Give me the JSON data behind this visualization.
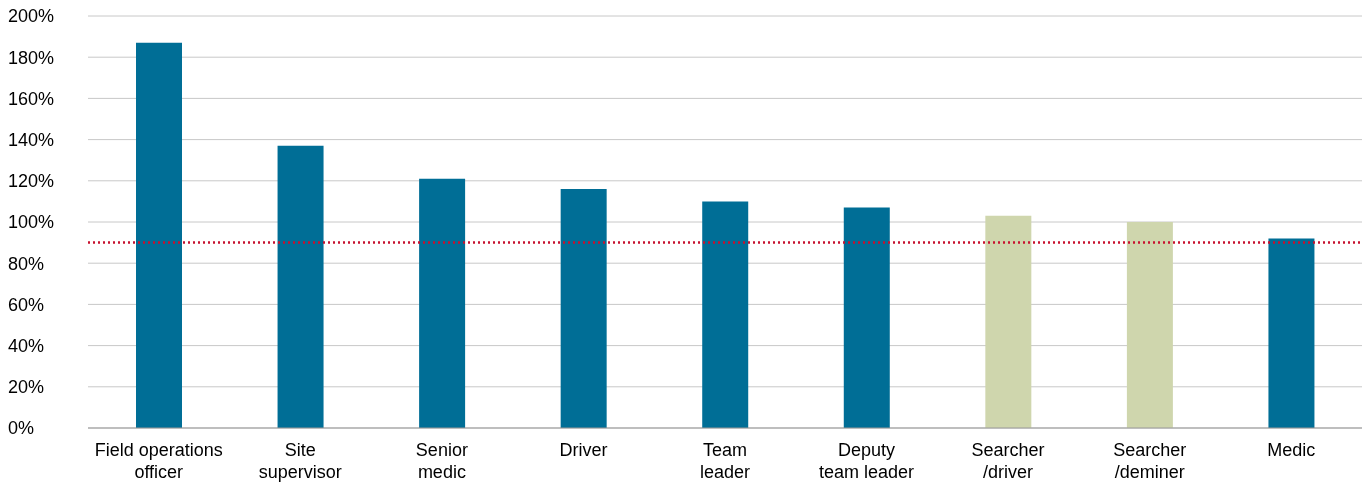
{
  "chart_data": {
    "type": "bar",
    "categories": [
      "Field operations\nofficer",
      "Site\nsupervisor",
      "Senior\nmedic",
      "Driver",
      "Team\nleader",
      "Deputy\nteam leader",
      "Searcher\n/driver",
      "Searcher\n/deminer",
      "Medic"
    ],
    "values": [
      187,
      137,
      121,
      116,
      110,
      107,
      103,
      100,
      92
    ],
    "colors": [
      "#006e96",
      "#006e96",
      "#006e96",
      "#006e96",
      "#006e96",
      "#006e96",
      "#cfd6ad",
      "#cfd6ad",
      "#006e96"
    ],
    "ylim": [
      0,
      200
    ],
    "yticks": [
      {
        "value": 0,
        "label": "0%"
      },
      {
        "value": 20,
        "label": "20%"
      },
      {
        "value": 40,
        "label": "40%"
      },
      {
        "value": 60,
        "label": "60%"
      },
      {
        "value": 80,
        "label": "80%"
      },
      {
        "value": 100,
        "label": "100%"
      },
      {
        "value": 120,
        "label": "120%"
      },
      {
        "value": 140,
        "label": "140%"
      },
      {
        "value": 160,
        "label": "160%"
      },
      {
        "value": 180,
        "label": "180%"
      },
      {
        "value": 200,
        "label": "200%"
      }
    ],
    "grid": "y",
    "ref_lines": [
      {
        "axis": "y",
        "value": 90,
        "color": "#c8102e",
        "line_style": "dotted"
      }
    ]
  }
}
